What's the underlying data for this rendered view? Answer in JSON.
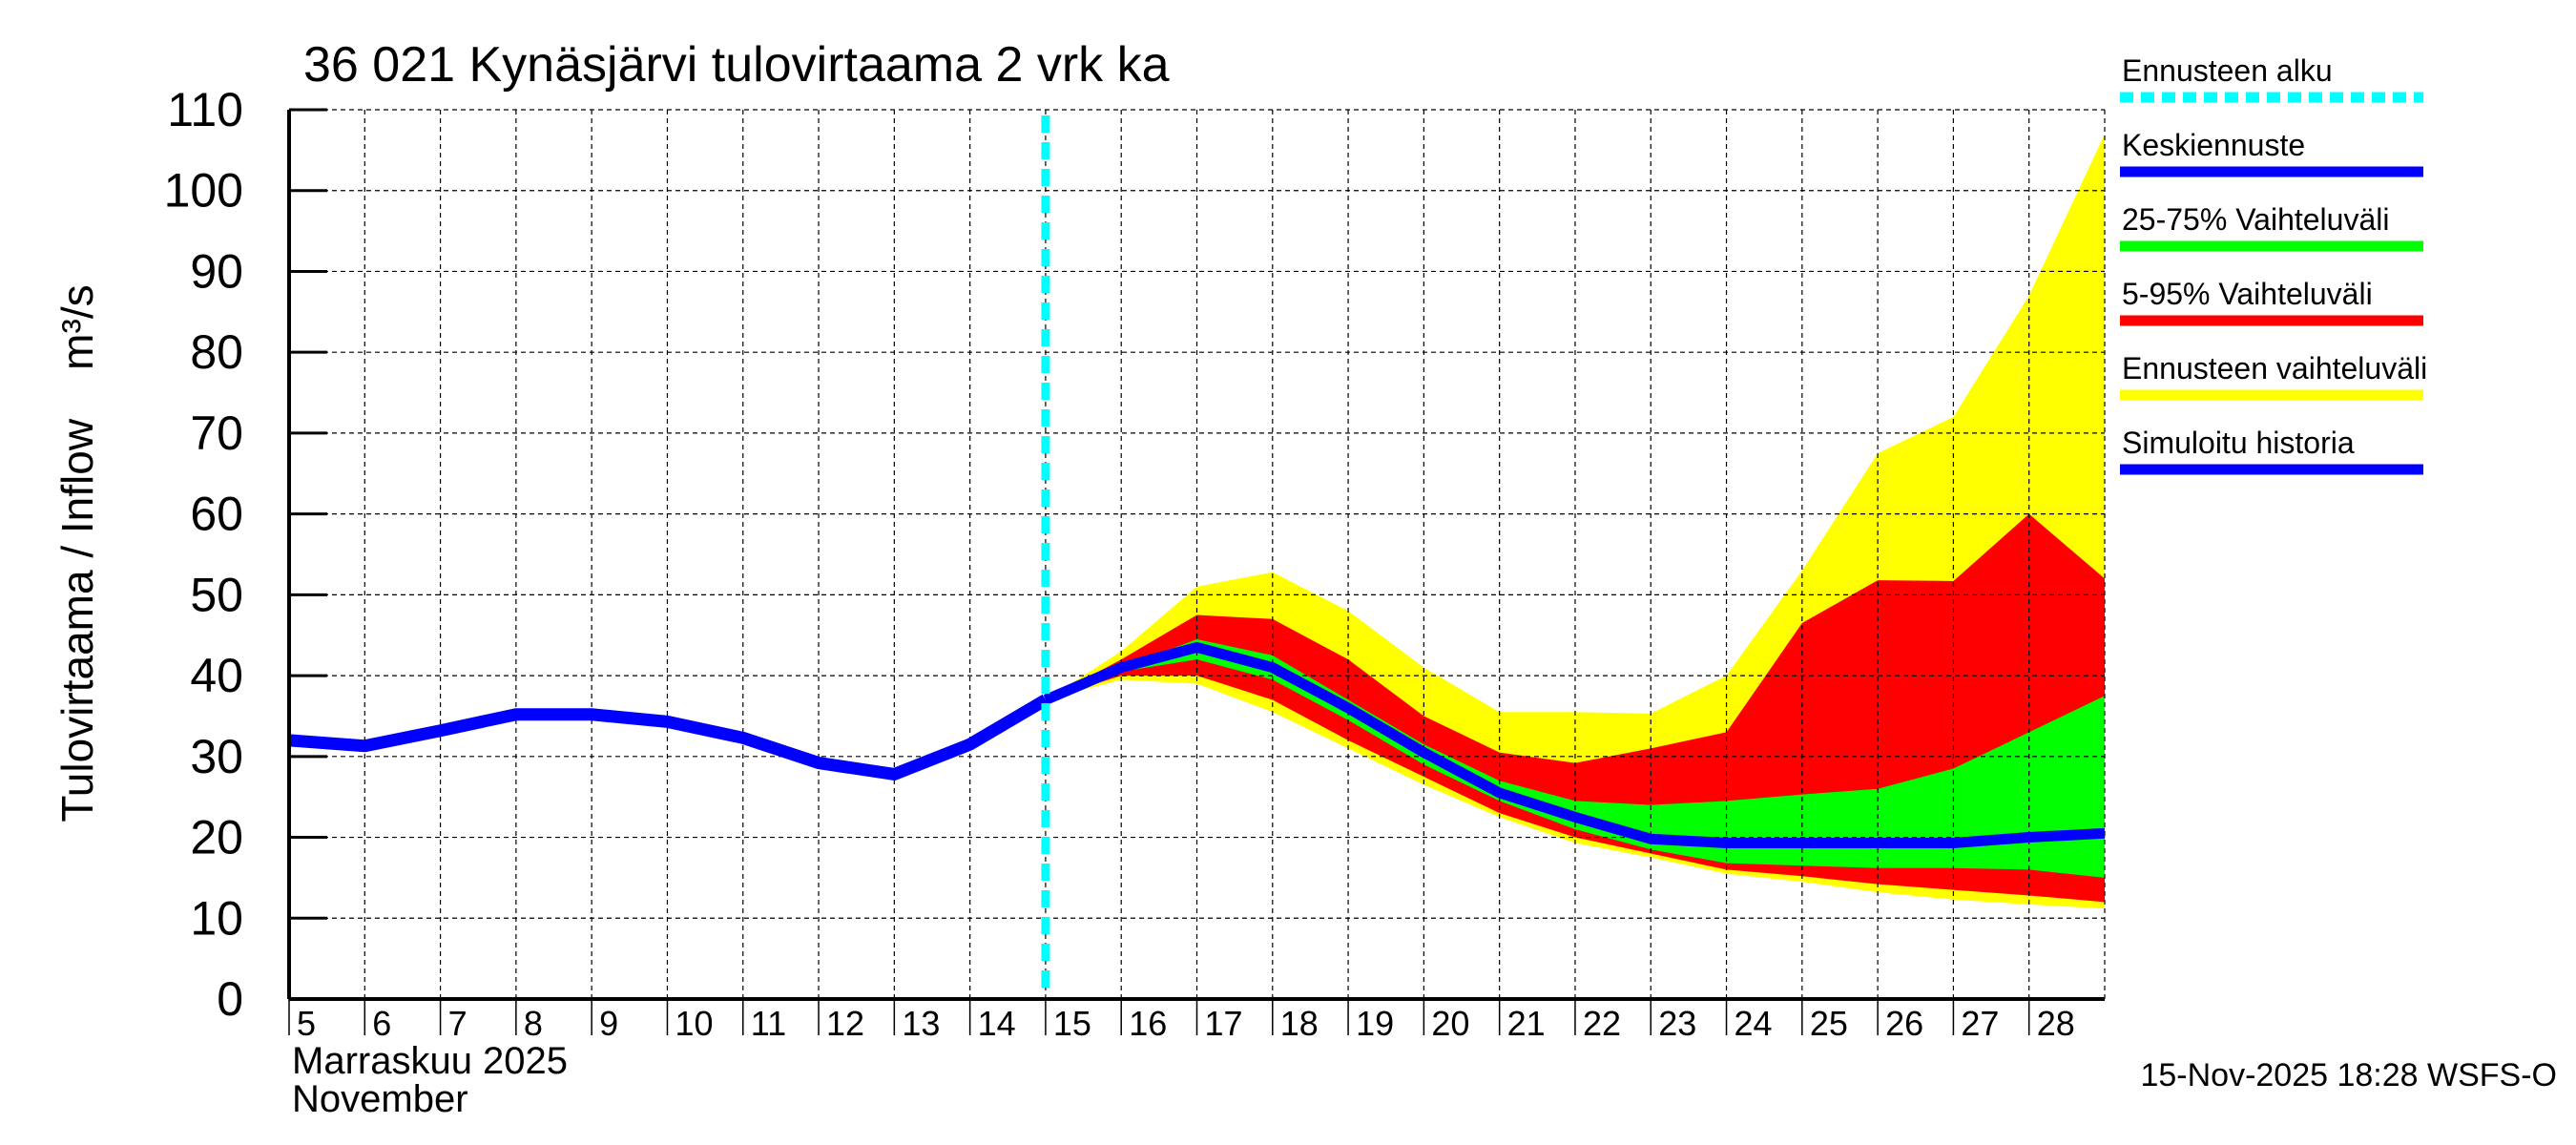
{
  "chart_data": {
    "type": "area",
    "title": "36 021 Kynäsjärvi tulovirtaama 2 vrk ka",
    "ylabel": "Tulovirtaama / Inflow    m³/s",
    "xlabel_line1": "Marraskuu 2025",
    "xlabel_line2": "November",
    "ylim": [
      0,
      110
    ],
    "xlim": [
      5,
      29
    ],
    "yticks": [
      0,
      10,
      20,
      30,
      40,
      50,
      60,
      70,
      80,
      90,
      100,
      110
    ],
    "xticks": [
      5,
      6,
      7,
      8,
      9,
      10,
      11,
      12,
      13,
      14,
      15,
      16,
      17,
      18,
      19,
      20,
      21,
      22,
      23,
      24,
      25,
      26,
      27,
      28
    ],
    "grid": true,
    "legend_placement": "right",
    "forecast_start": 15,
    "footer": "15-Nov-2025 18:28 WSFS-O",
    "colors": {
      "forecast_start": "#00ffff",
      "mean": "#0000ff",
      "p25_75": "#00ff00",
      "p5_95": "#ff0000",
      "range": "#ffff00",
      "history": "#0000ff"
    },
    "legend": [
      {
        "label": "Ennusteen alku",
        "key": "forecast_start",
        "dashed": true
      },
      {
        "label": "Keskiennuste",
        "key": "mean"
      },
      {
        "label": "25-75% Vaihteluväli",
        "key": "p25_75"
      },
      {
        "label": "5-95% Vaihteluväli",
        "key": "p5_95"
      },
      {
        "label": "Ennusteen vaihteluväli",
        "key": "range"
      },
      {
        "label": "Simuloitu historia",
        "key": "history"
      }
    ],
    "history": {
      "x": [
        5,
        6,
        7,
        8,
        9,
        10,
        11,
        12,
        13,
        14,
        15
      ],
      "y": [
        32,
        31.3,
        33.2,
        35.2,
        35.2,
        34.3,
        32.3,
        29.2,
        27.8,
        31.5,
        37
      ]
    },
    "forecast_x": [
      15,
      16,
      17,
      18,
      19,
      20,
      21,
      22,
      23,
      24,
      25,
      26,
      27,
      28,
      29
    ],
    "mean": [
      37,
      41,
      43.5,
      41,
      36,
      30.5,
      25.5,
      22.5,
      19.8,
      19.3,
      19.3,
      19.3,
      19.3,
      20,
      20.5
    ],
    "range_upper": [
      37,
      43,
      51,
      52.8,
      48,
      41,
      35.5,
      35.5,
      35.3,
      40,
      53,
      67.5,
      72,
      87,
      107
    ],
    "range_lower": [
      37,
      39.5,
      39,
      35.5,
      31,
      26.5,
      22.5,
      19.3,
      17.5,
      15.5,
      14.5,
      13.2,
      12.3,
      11.7,
      11.2
    ],
    "p95": [
      37,
      42,
      47.5,
      47,
      42,
      35,
      30.5,
      29.2,
      31,
      33,
      46.5,
      51.8,
      51.7,
      60,
      52
    ],
    "p5": [
      37,
      40,
      40,
      37,
      32,
      27.5,
      23,
      20,
      18,
      16,
      15.2,
      14.2,
      13.5,
      12.8,
      12
    ],
    "p75": [
      37,
      41,
      44.5,
      42.5,
      37,
      31.5,
      27,
      24.5,
      24,
      24.5,
      25.3,
      26,
      28.5,
      33,
      37.5
    ],
    "p25": [
      37,
      40.5,
      42,
      39.5,
      34.5,
      29,
      24.5,
      21,
      18.5,
      16.8,
      16.5,
      16.2,
      16.2,
      16,
      15
    ]
  }
}
